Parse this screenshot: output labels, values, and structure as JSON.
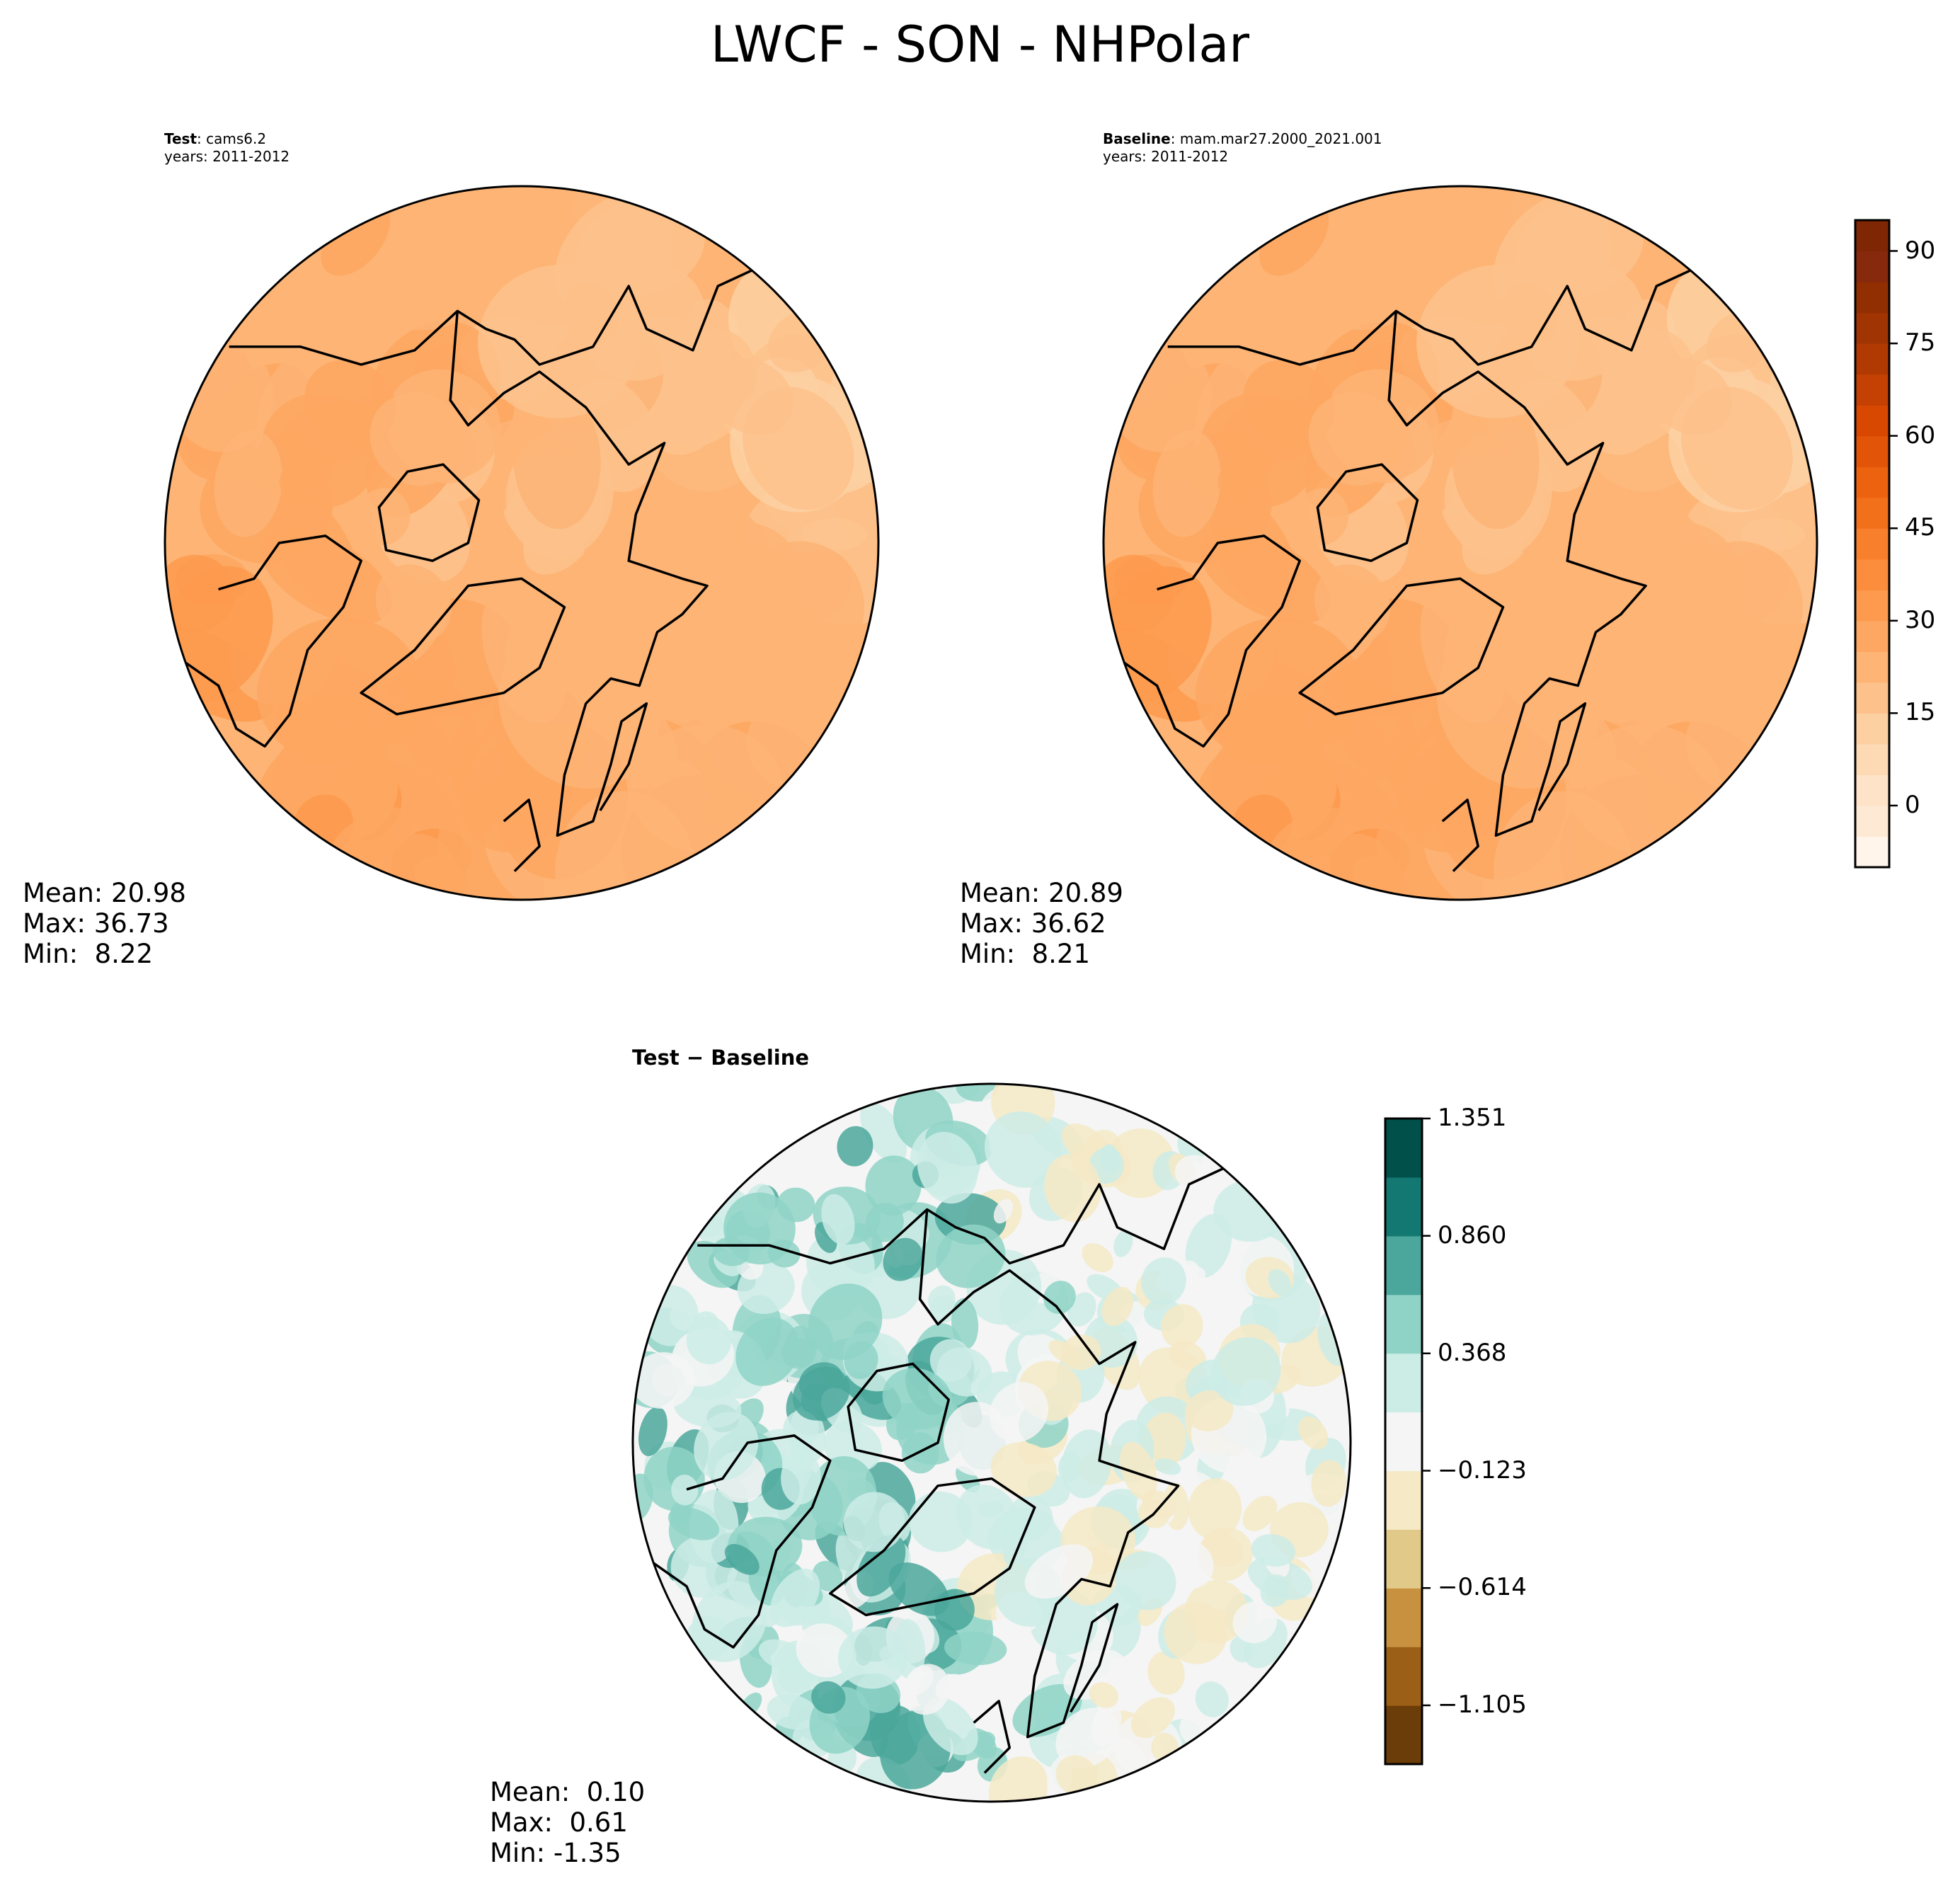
{
  "figure": {
    "title": "LWCF - SON - NHPolar"
  },
  "panels": [
    {
      "label_bold": "Test",
      "label_rest": ": cams6.2",
      "years": "years: 2011-2012",
      "stats": {
        "mean": "Mean: 20.98",
        "max": "Max: 36.73",
        "min": "Min:  8.22"
      }
    },
    {
      "label_bold": "Baseline",
      "label_rest": ": mam.mar27.2000_2021.001",
      "years": "years: 2011-2012",
      "stats": {
        "mean": "Mean: 20.89",
        "max": "Max: 36.62",
        "min": "Min:  8.21"
      }
    },
    {
      "label_bold": "Test − Baseline",
      "label_rest": "",
      "years": "",
      "stats": {
        "mean": "Mean:  0.10",
        "max": "Max:  0.61",
        "min": "Min: -1.35"
      }
    }
  ],
  "chart_data": [
    {
      "type": "heatmap",
      "projection": "north-polar-stereographic",
      "title": "Test : cams6.2",
      "colormap": "Oranges",
      "dominant_range": [
        8.22,
        36.73
      ],
      "mean": 20.98
    },
    {
      "type": "heatmap",
      "projection": "north-polar-stereographic",
      "title": "Baseline : mam.mar27.2000_2021.001",
      "colormap": "Oranges",
      "dominant_range": [
        8.21,
        36.62
      ],
      "mean": 20.89
    },
    {
      "type": "heatmap",
      "projection": "north-polar-stereographic",
      "title": "Test − Baseline",
      "colormap": "BrBG",
      "dominant_range": [
        -1.35,
        0.61
      ],
      "mean": 0.1
    }
  ],
  "colorbars": {
    "main": {
      "range": [
        -10,
        95
      ],
      "step": 5,
      "ticks": [
        "0",
        "15",
        "30",
        "45",
        "60",
        "75",
        "90"
      ],
      "tick_values": [
        0,
        15,
        30,
        45,
        60,
        75,
        90
      ],
      "colors": [
        "#fff5eb",
        "#fee9d4",
        "#fee3c8",
        "#fdd9b4",
        "#fdd0a2",
        "#fdc28c",
        "#fdb475",
        "#fda762",
        "#fd9a4e",
        "#fb8d3d",
        "#f87f2c",
        "#f3701b",
        "#ec620f",
        "#e25407",
        "#d84801",
        "#c44103",
        "#b13a03",
        "#a03403",
        "#912f03",
        "#86290c",
        "#7f2704"
      ]
    },
    "diff": {
      "range": [
        -1.351,
        1.351
      ],
      "ticks": [
        "1.351",
        "0.860",
        "0.368",
        "−0.123",
        "−0.614",
        "−1.105"
      ],
      "tick_values": [
        1.351,
        0.86,
        0.368,
        -0.123,
        -0.614,
        -1.105
      ],
      "colors": [
        "#6b3d08",
        "#9c5f17",
        "#c8913f",
        "#e1c989",
        "#f5e9c6",
        "#f4f5f4",
        "#ccece6",
        "#8fd3c7",
        "#4ba79b",
        "#137872",
        "#01504a"
      ]
    }
  }
}
